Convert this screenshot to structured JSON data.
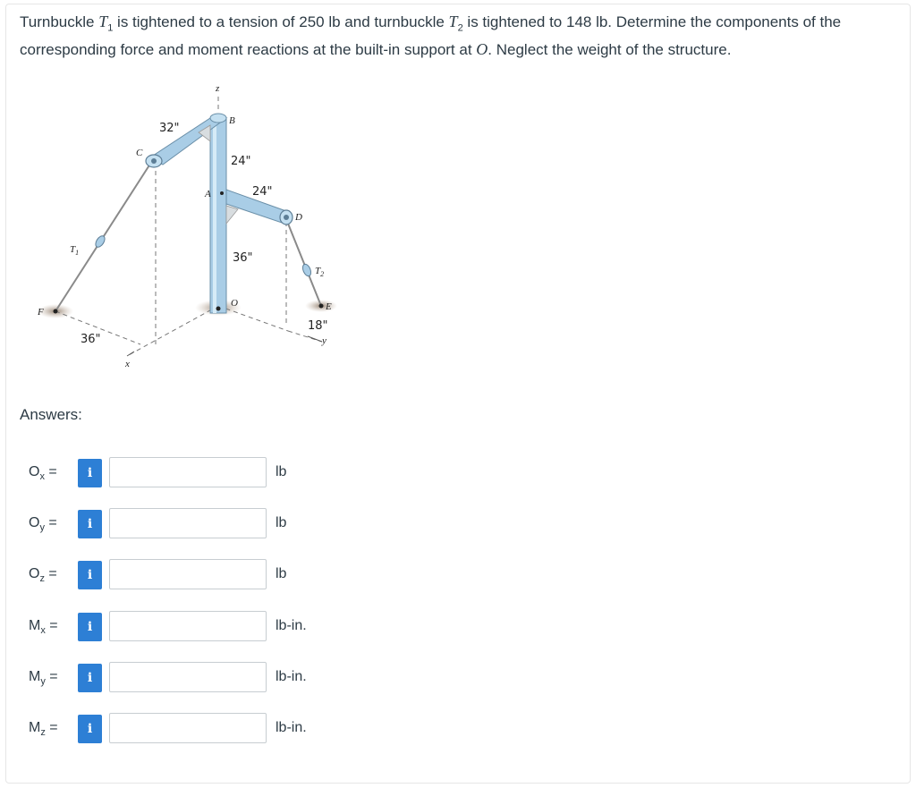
{
  "problem": {
    "part1": "Turnbuckle ",
    "t1_symbol": "T",
    "t1_sub": "1",
    "part2": " is tightened to a tension of 250 lb and turnbuckle ",
    "t2_symbol": "T",
    "t2_sub": "2",
    "part3": " is tightened to 148 lb. Determine the components of the corresponding force and moment reactions at the built-in support at ",
    "o_symbol": "O",
    "part4": ". Neglect the weight of the structure."
  },
  "figure": {
    "labels": {
      "z": "z",
      "x": "x",
      "y": "y",
      "A": "A",
      "B": "B",
      "C": "C",
      "D": "D",
      "E": "E",
      "F": "F",
      "O": "O",
      "T1": "T",
      "T1_sub": "1",
      "T2": "T",
      "T2_sub": "2",
      "dim_32": "32\"",
      "dim_24a": "24\"",
      "dim_24b": "24\"",
      "dim_36a": "36\"",
      "dim_36b": "36\"",
      "dim_18": "18\""
    },
    "colors": {
      "pipe": "#a9cde6",
      "pipe_edge": "#6a8fa8",
      "shadow": "#b9a795"
    }
  },
  "answers": {
    "heading": "Answers:",
    "info_glyph": "i",
    "rows": [
      {
        "sym": "O",
        "sub": "x",
        "eq": " =",
        "value": "",
        "unit": "lb"
      },
      {
        "sym": "O",
        "sub": "y",
        "eq": " =",
        "value": "",
        "unit": "lb"
      },
      {
        "sym": "O",
        "sub": "z",
        "eq": " =",
        "value": "",
        "unit": "lb"
      },
      {
        "sym": "M",
        "sub": "x",
        "eq": " =",
        "value": "",
        "unit": "lb-in."
      },
      {
        "sym": "M",
        "sub": "y",
        "eq": " =",
        "value": "",
        "unit": "lb-in."
      },
      {
        "sym": "M",
        "sub": "z",
        "eq": " =",
        "value": "",
        "unit": "lb-in."
      }
    ]
  }
}
